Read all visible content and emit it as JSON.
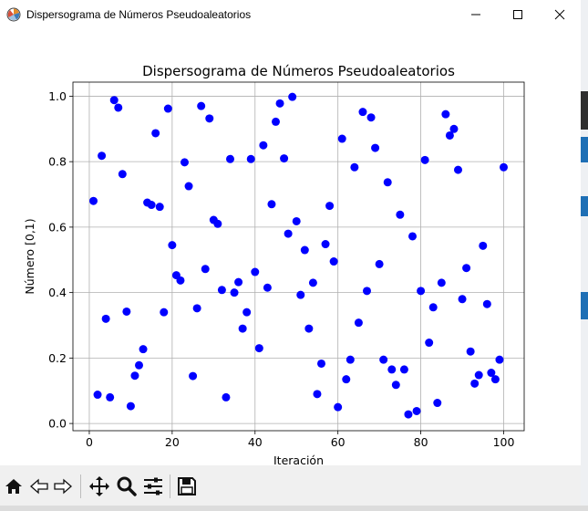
{
  "window": {
    "title": "Dispersograma de Números Pseudoaleatorios",
    "controls": [
      "minimize-icon",
      "maximize-icon",
      "close-icon"
    ]
  },
  "toolbar": {
    "buttons": [
      "home-icon",
      "back-arrow-icon",
      "forward-arrow-icon",
      "pan-move-icon",
      "zoom-magnifier-icon",
      "configure-subplots-icon",
      "save-floppy-icon"
    ]
  },
  "chart_data": {
    "type": "scatter",
    "title": "Dispersograma de Números Pseudoaleatorios",
    "xlabel": "Iteración",
    "ylabel": "Número [0,1)",
    "xlim": [
      -3.95,
      104.95
    ],
    "ylim": [
      -0.022,
      1.043
    ],
    "xticks": [
      0,
      20,
      40,
      60,
      80,
      100
    ],
    "yticks": [
      0.0,
      0.2,
      0.4,
      0.6,
      0.8,
      1.0
    ],
    "xtick_labels": [
      "0",
      "20",
      "40",
      "60",
      "80",
      "100"
    ],
    "ytick_labels": [
      "0.0",
      "0.2",
      "0.4",
      "0.6",
      "0.8",
      "1.0"
    ],
    "grid": true,
    "marker_color": "#0000ff",
    "x": [
      1,
      2,
      3,
      4,
      5,
      6,
      7,
      8,
      9,
      10,
      11,
      12,
      13,
      14,
      15,
      16,
      17,
      18,
      19,
      20,
      21,
      22,
      23,
      24,
      25,
      26,
      27,
      28,
      29,
      30,
      31,
      32,
      33,
      34,
      35,
      36,
      37,
      38,
      39,
      40,
      41,
      42,
      43,
      44,
      45,
      46,
      47,
      48,
      49,
      50,
      51,
      52,
      53,
      54,
      55,
      56,
      57,
      58,
      59,
      60,
      61,
      62,
      63,
      64,
      65,
      66,
      67,
      68,
      69,
      70,
      71,
      72,
      73,
      74,
      75,
      76,
      77,
      78,
      79,
      80,
      81,
      82,
      83,
      84,
      85,
      86,
      87,
      88,
      89,
      90,
      91,
      92,
      93,
      94,
      95,
      96,
      97,
      98,
      99,
      100
    ],
    "y": [
      0.68,
      0.088,
      0.818,
      0.32,
      0.08,
      0.988,
      0.965,
      0.762,
      0.342,
      0.053,
      0.146,
      0.178,
      0.227,
      0.675,
      0.668,
      0.887,
      0.662,
      0.34,
      0.962,
      0.545,
      0.453,
      0.437,
      0.798,
      0.725,
      0.145,
      0.352,
      0.97,
      0.472,
      0.932,
      0.622,
      0.61,
      0.408,
      0.08,
      0.808,
      0.4,
      0.432,
      0.29,
      0.34,
      0.808,
      0.463,
      0.23,
      0.85,
      0.415,
      0.67,
      0.922,
      0.978,
      0.81,
      0.58,
      0.998,
      0.618,
      0.393,
      0.53,
      0.29,
      0.43,
      0.09,
      0.183,
      0.548,
      0.665,
      0.495,
      0.05,
      0.87,
      0.135,
      0.195,
      0.783,
      0.308,
      0.952,
      0.405,
      0.935,
      0.842,
      0.487,
      0.195,
      0.737,
      0.165,
      0.118,
      0.638,
      0.165,
      0.028,
      0.572,
      0.038,
      0.405,
      0.805,
      0.247,
      0.355,
      0.063,
      0.43,
      0.945,
      0.88,
      0.9,
      0.775,
      0.38,
      0.475,
      0.22,
      0.122,
      0.148,
      0.543,
      0.365,
      0.155,
      0.135,
      0.195,
      0.783
    ]
  }
}
